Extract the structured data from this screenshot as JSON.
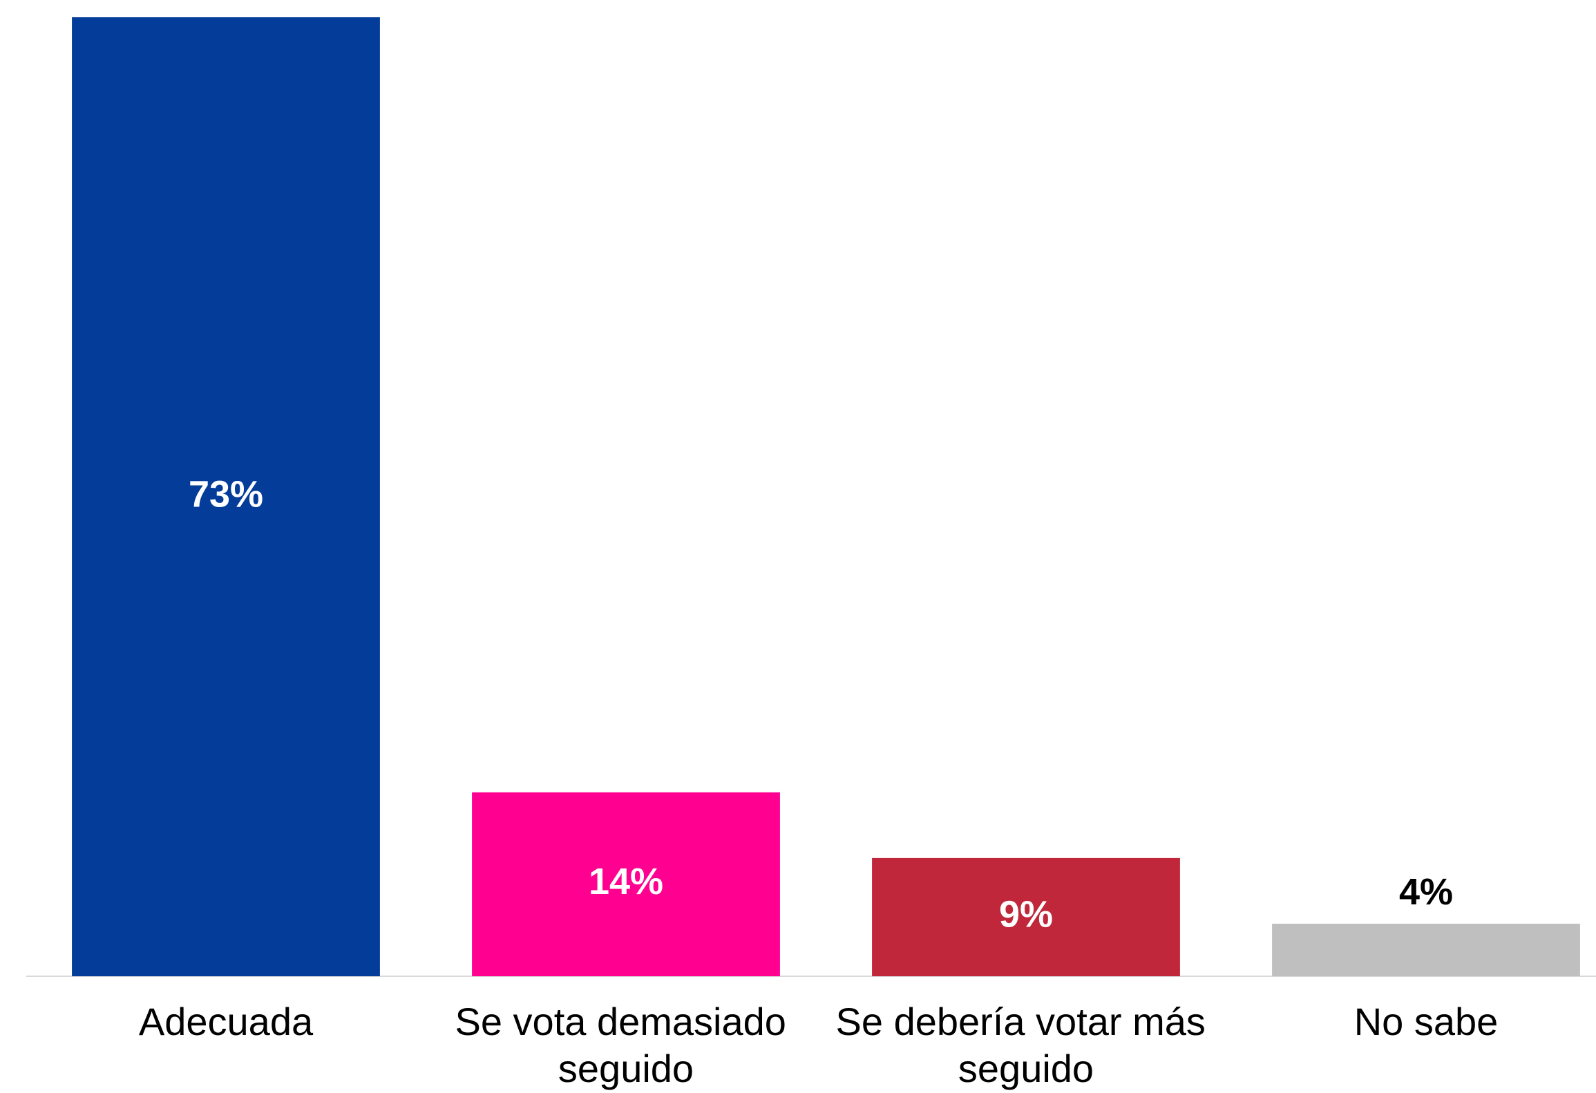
{
  "chart_data": {
    "type": "bar",
    "categories": [
      "Adecuada",
      "Se vota demasiado seguido",
      "Se debería votar más seguido",
      "No sabe"
    ],
    "values": [
      73,
      14,
      9,
      4
    ],
    "value_labels": [
      "73%",
      "14%",
      "9%",
      "4%"
    ],
    "colors": [
      "#033d99",
      "#ff0090",
      "#c0273a",
      "#bfbfbf"
    ],
    "ylim": [
      0,
      73
    ]
  }
}
